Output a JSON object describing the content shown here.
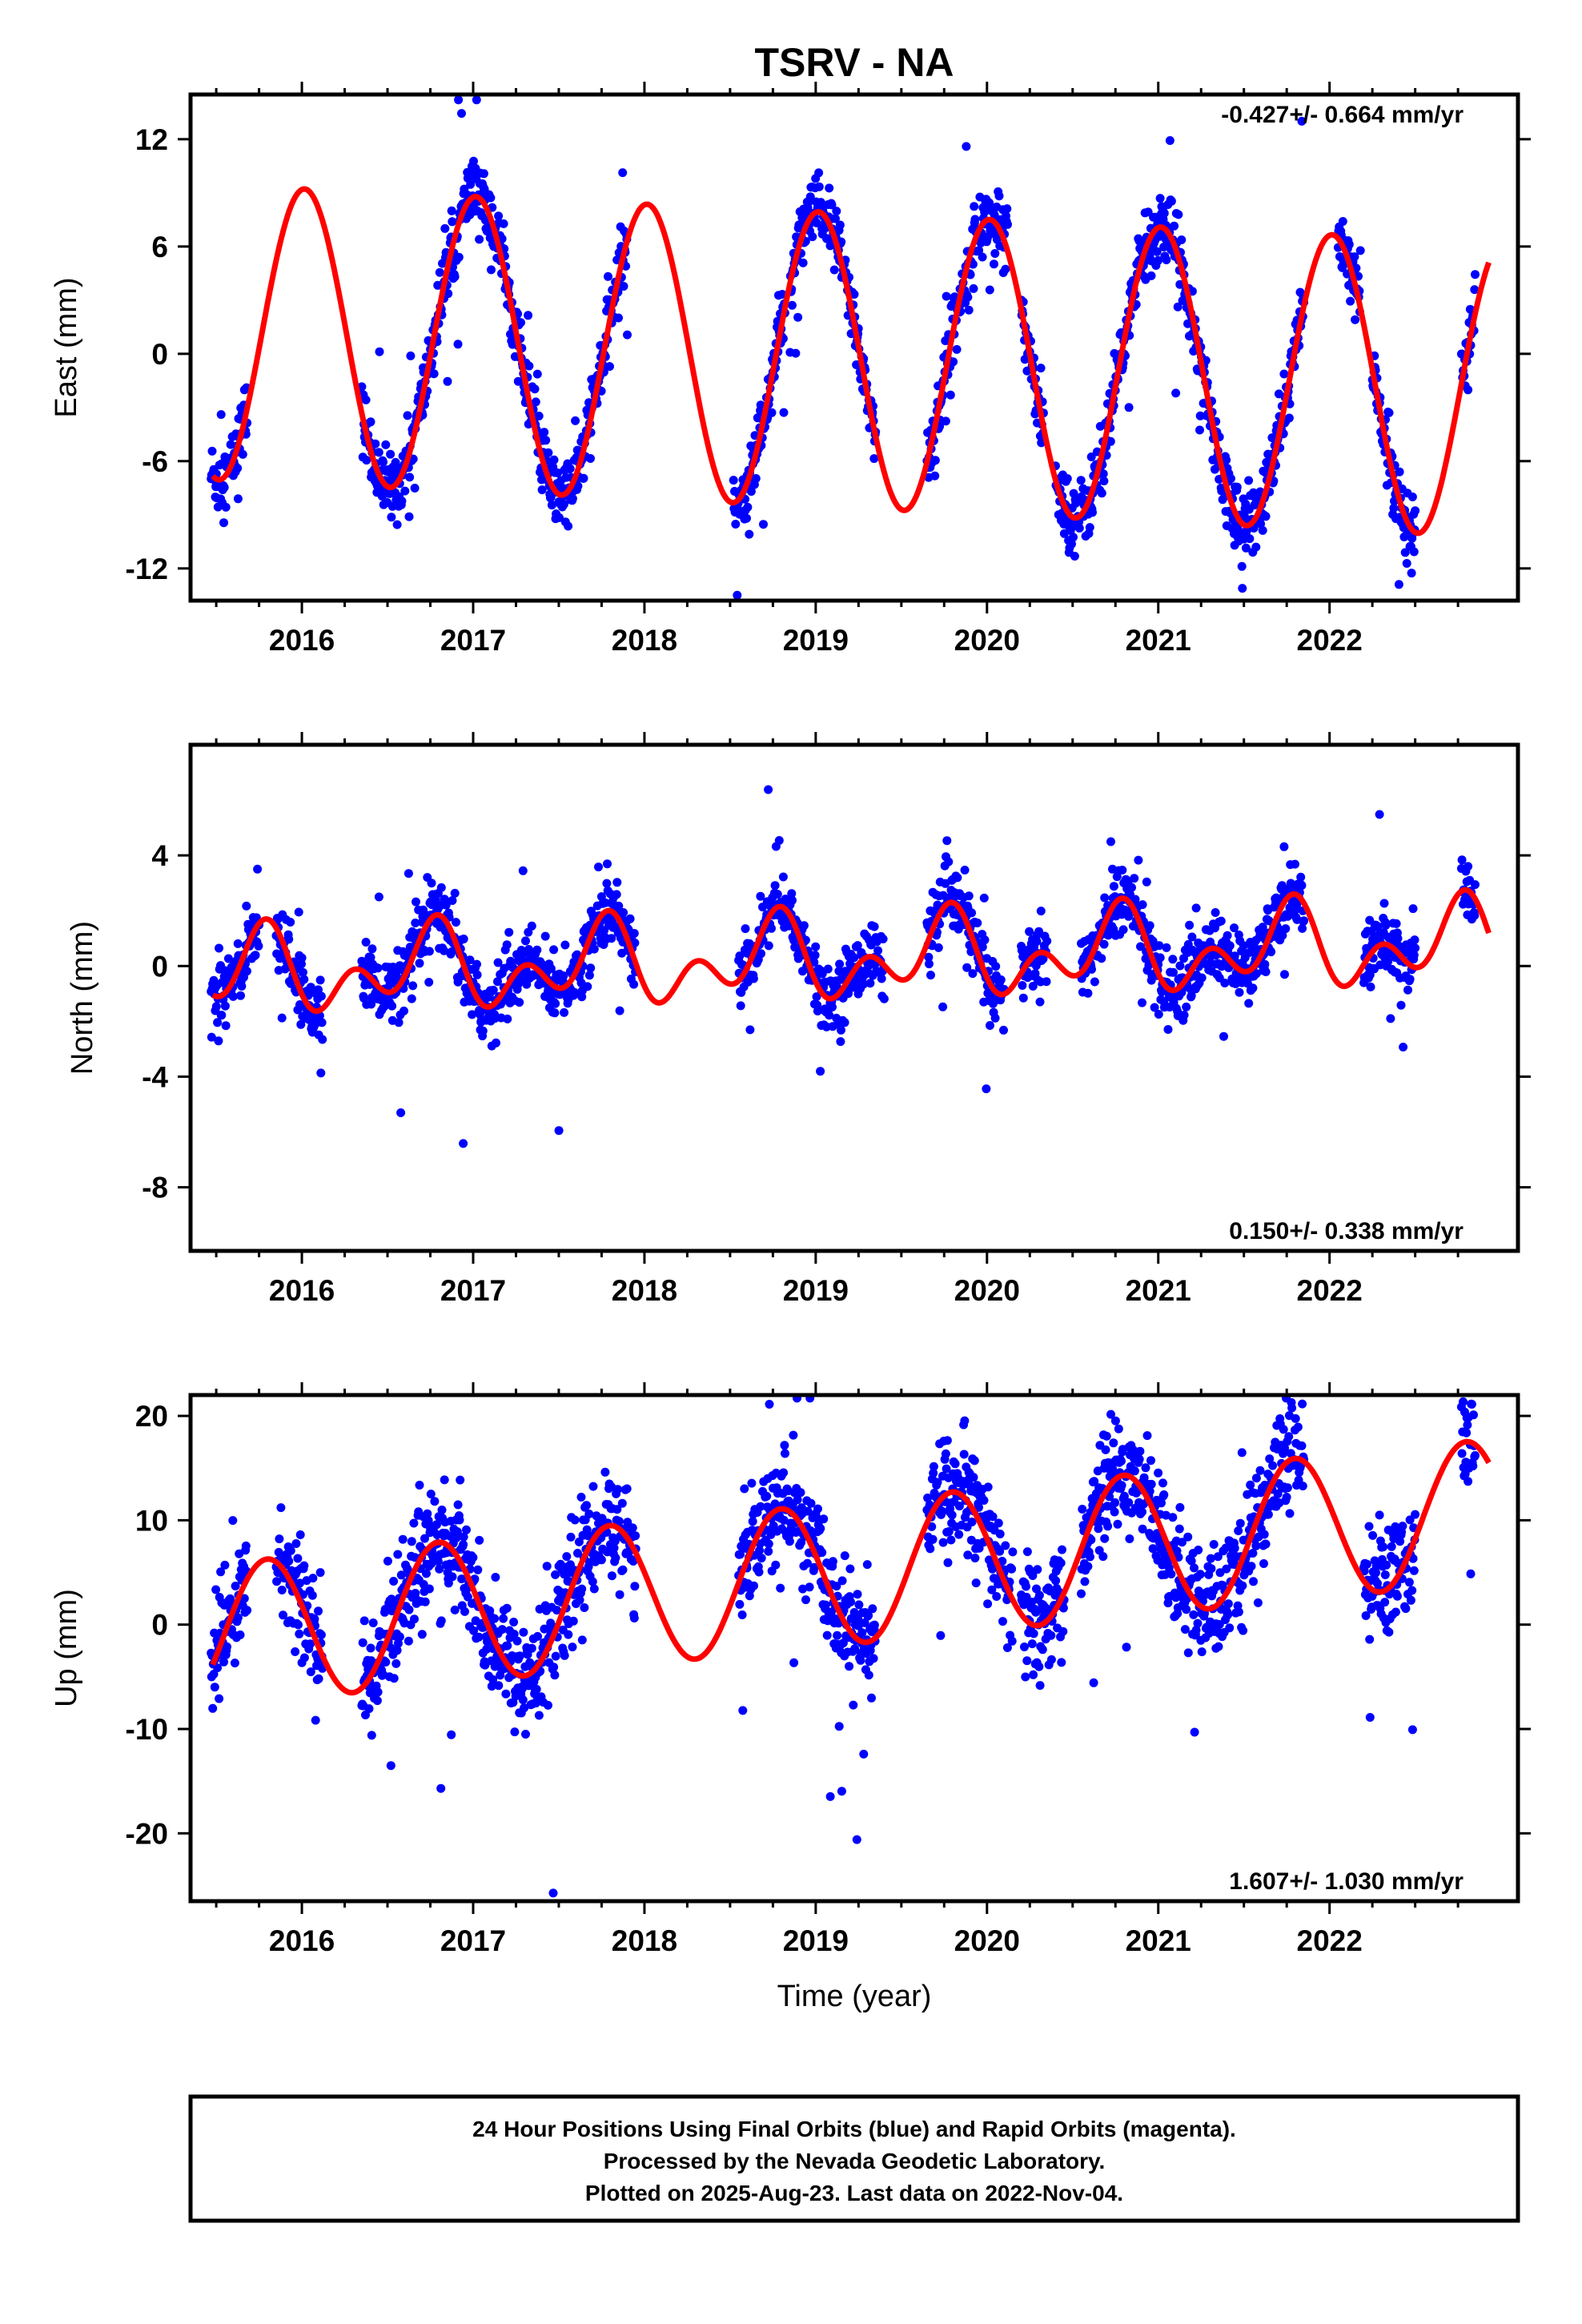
{
  "page": {
    "title": "TSRV - NA",
    "xlabel": "Time (year)",
    "footer": [
      "24 Hour Positions Using Final Orbits (blue) and Rapid Orbits (magenta).",
      "Processed by the Nevada Geodetic Laboratory.",
      "Plotted on 2025-Aug-23. Last data on 2022-Nov-04."
    ]
  },
  "colors": {
    "points": "#0000ff",
    "model": "#ff0000",
    "frame": "#000000"
  },
  "chart_data": [
    {
      "type": "scatter",
      "component": "east",
      "ylabel": "East (mm)",
      "rate_text": "-0.427+/- 0.664 mm/yr",
      "xlim": [
        2015.35,
        2023.1
      ],
      "ylim": [
        -13.8,
        14.5
      ],
      "yticks": [
        12,
        6,
        0,
        -6,
        -12
      ],
      "ytick_labels": [
        "12",
        "6",
        "0",
        "-6",
        "-12"
      ],
      "xticks": [
        2016,
        2017,
        2018,
        2019,
        2020,
        2021,
        2022
      ],
      "xtick_labels": [
        "2016",
        "2017",
        "2018",
        "2019",
        "2020",
        "2021",
        "2022"
      ],
      "data_segments": [
        [
          2015.47,
          2015.68
        ],
        [
          2016.35,
          2017.9
        ],
        [
          2018.52,
          2018.82
        ],
        [
          2018.85,
          2019.35
        ],
        [
          2019.65,
          2020.12
        ],
        [
          2020.2,
          2020.33
        ],
        [
          2020.4,
          2021.85
        ],
        [
          2022.05,
          2022.18
        ],
        [
          2022.25,
          2022.5
        ],
        [
          2022.77,
          2022.85
        ]
      ],
      "model": {
        "offset": 1.2,
        "rate": -0.427,
        "annual_cos": -8.2,
        "annual_sin": -0.8,
        "semi_cos": 0.0,
        "semi_sin": 0.0
      },
      "noise": 1.6
    },
    {
      "type": "scatter",
      "component": "north",
      "ylabel": "North (mm)",
      "rate_text": "0.150+/- 0.338 mm/yr",
      "xlim": [
        2015.35,
        2023.1
      ],
      "ylim": [
        -10.3,
        8.0
      ],
      "yticks": [
        4,
        0,
        -4,
        -8
      ],
      "ytick_labels": [
        "4",
        "0",
        "-4",
        "-8"
      ],
      "xticks": [
        2016,
        2017,
        2018,
        2019,
        2020,
        2021,
        2022
      ],
      "xtick_labels": [
        "2016",
        "2017",
        "2018",
        "2019",
        "2020",
        "2021",
        "2022"
      ],
      "data_segments": [
        [
          2015.47,
          2015.75
        ],
        [
          2015.85,
          2016.12
        ],
        [
          2016.35,
          2017.95
        ],
        [
          2018.55,
          2019.4
        ],
        [
          2019.65,
          2020.1
        ],
        [
          2020.2,
          2020.35
        ],
        [
          2020.55,
          2021.85
        ],
        [
          2022.2,
          2022.5
        ],
        [
          2022.77,
          2022.85
        ]
      ],
      "model": {
        "offset": -0.3,
        "rate": 0.15,
        "annual_cos": 0.0,
        "annual_sin": 1.0,
        "semi_cos": -0.8,
        "semi_sin": -0.6
      },
      "noise": 1.0
    },
    {
      "type": "scatter",
      "component": "up",
      "ylabel": "Up (mm)",
      "rate_text": "1.607+/- 1.030 mm/yr",
      "xlim": [
        2015.35,
        2023.1
      ],
      "ylim": [
        -26.5,
        22.0
      ],
      "yticks": [
        20,
        10,
        0,
        -10,
        -20
      ],
      "ytick_labels": [
        "20",
        "10",
        "0",
        "-10",
        "-20"
      ],
      "xticks": [
        2016,
        2017,
        2018,
        2019,
        2020,
        2021,
        2022
      ],
      "xtick_labels": [
        "2016",
        "2017",
        "2018",
        "2019",
        "2020",
        "2021",
        "2022"
      ],
      "data_segments": [
        [
          2015.47,
          2015.68
        ],
        [
          2015.85,
          2016.12
        ],
        [
          2016.35,
          2017.95
        ],
        [
          2018.55,
          2019.35
        ],
        [
          2019.65,
          2020.15
        ],
        [
          2020.2,
          2020.45
        ],
        [
          2020.55,
          2021.85
        ],
        [
          2022.2,
          2022.5
        ],
        [
          2022.77,
          2022.85
        ]
      ],
      "model": {
        "offset": -1.0,
        "rate": 1.607,
        "annual_cos": -2.0,
        "annual_sin": 6.5,
        "semi_cos": 0.0,
        "semi_sin": 0.0
      },
      "noise": 4.5
    }
  ]
}
